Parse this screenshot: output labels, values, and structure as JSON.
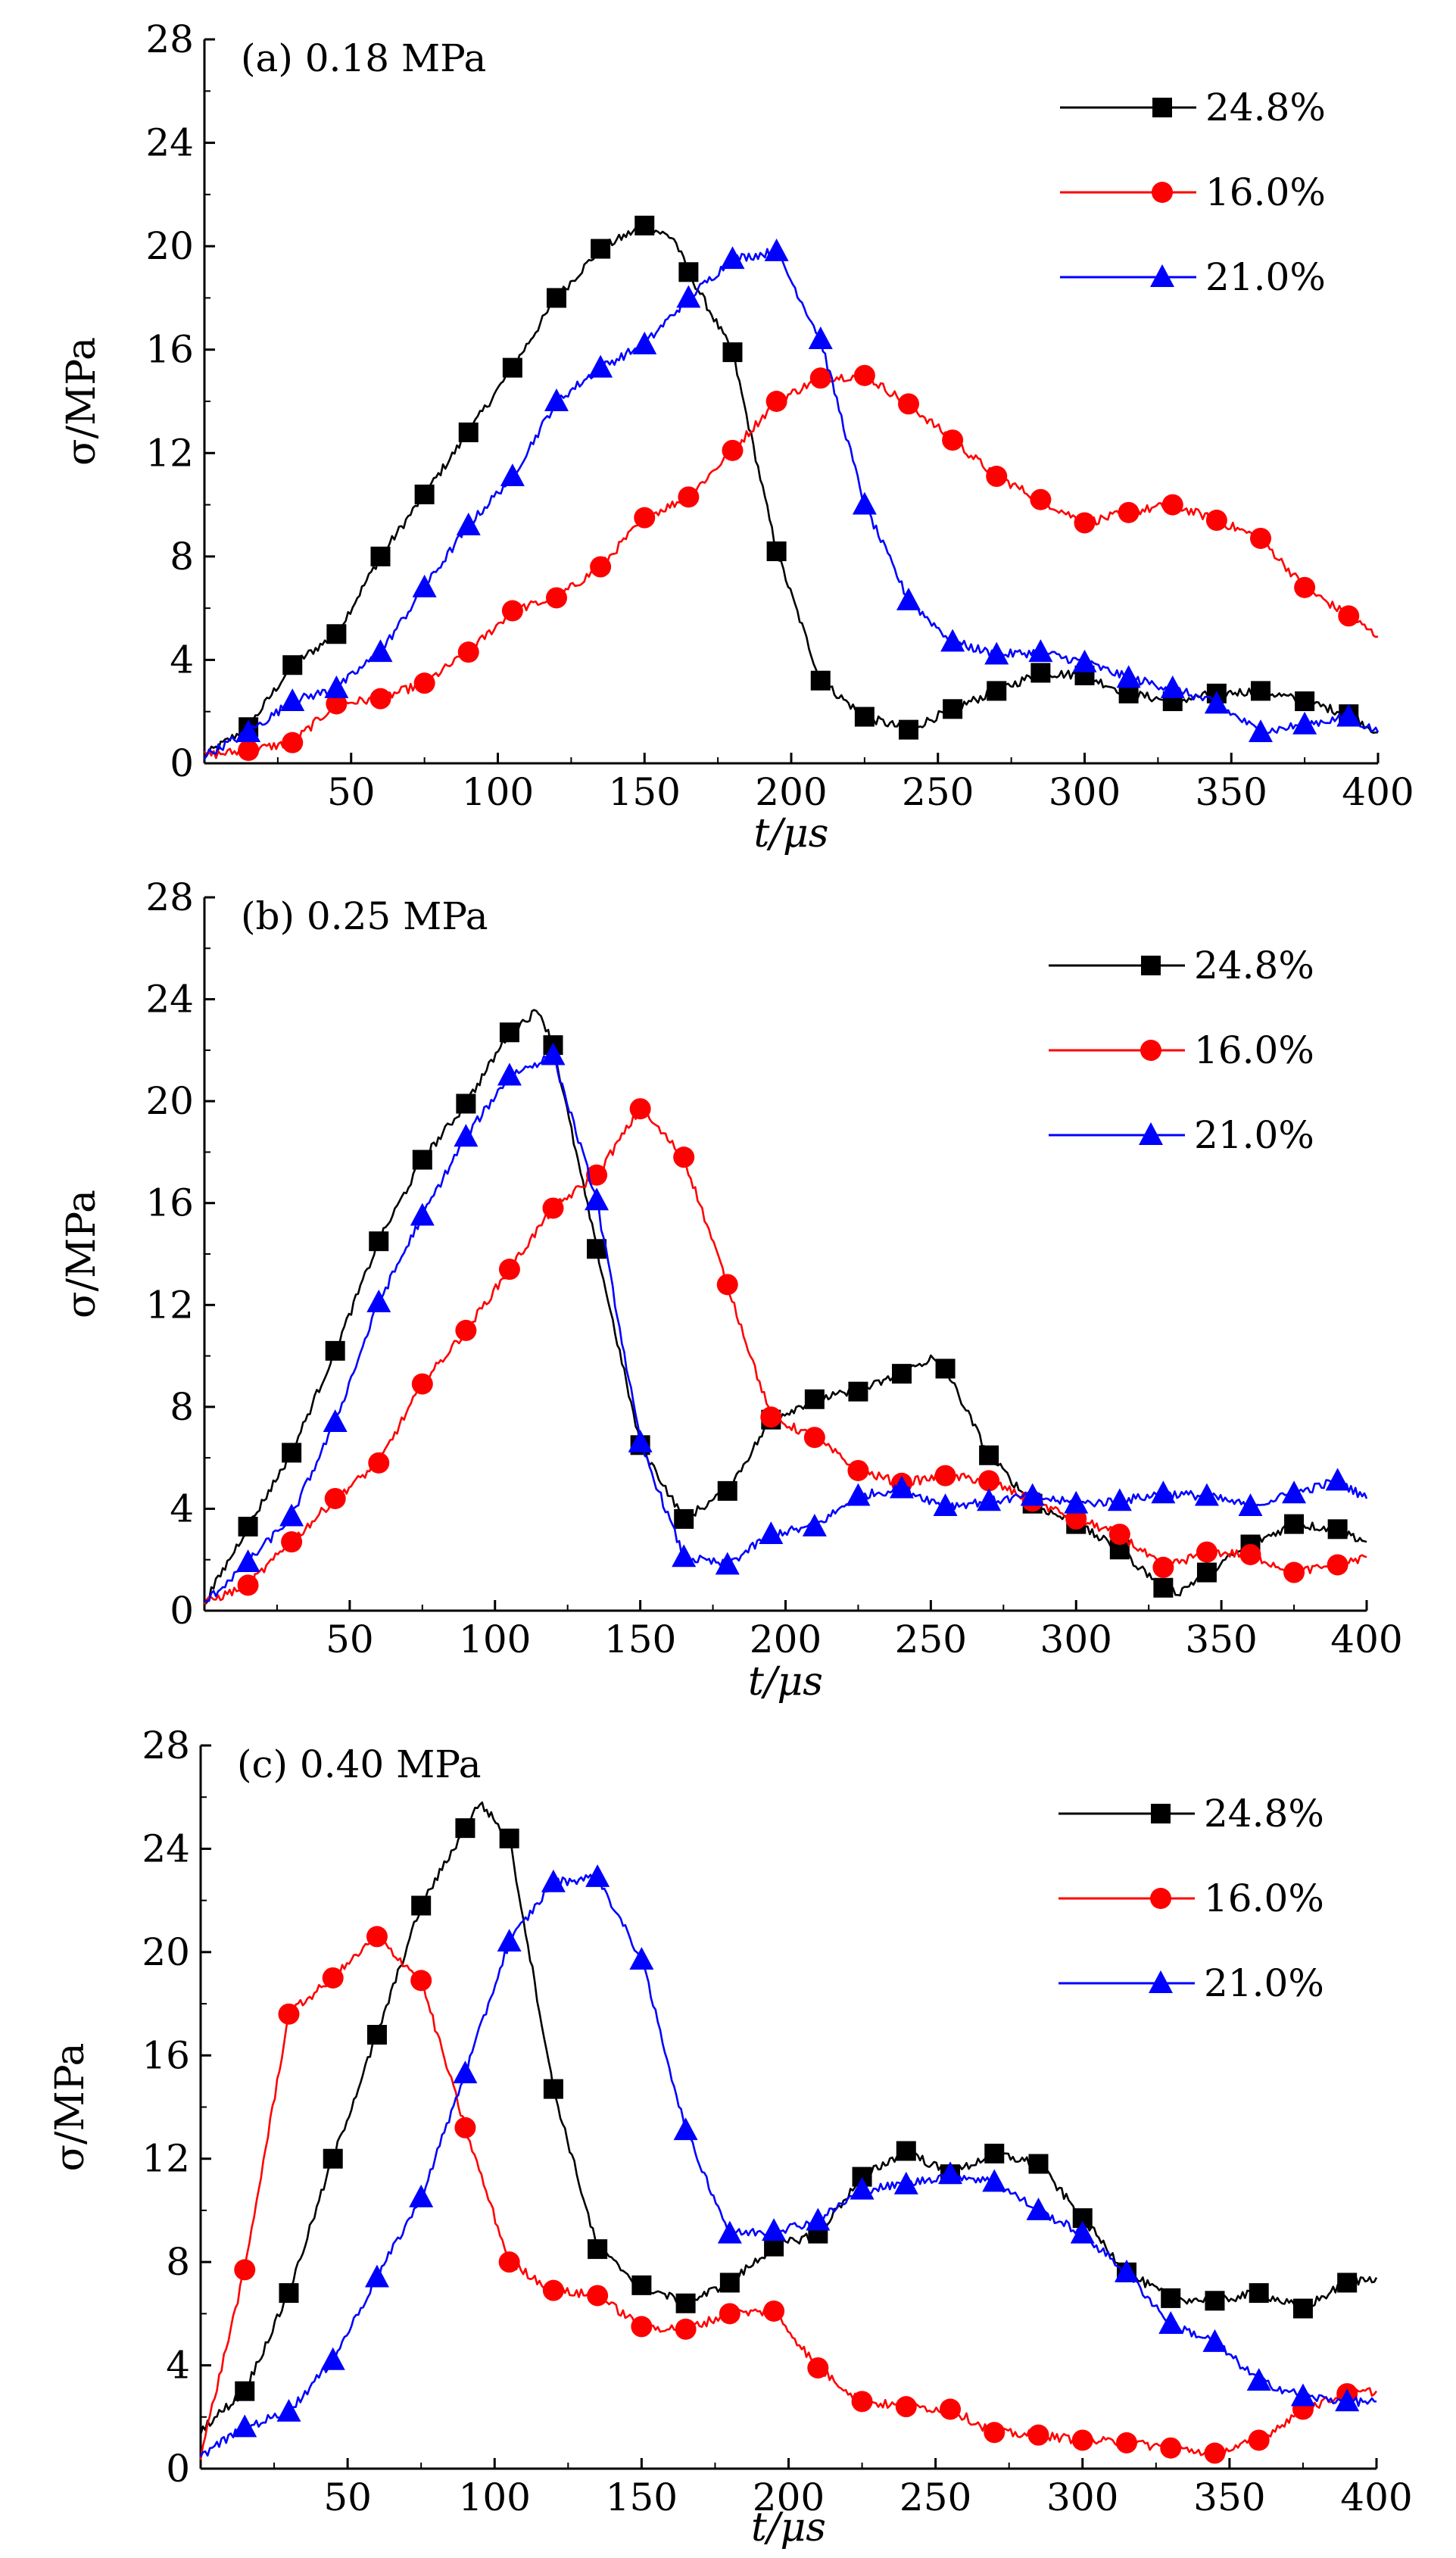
{
  "chart_data": [
    {
      "type": "line",
      "title": "(a) 0.18 MPa",
      "xlabel": "t/μs",
      "ylabel": "σ/MPa",
      "xlim": [
        0,
        400
      ],
      "ylim": [
        0,
        28
      ],
      "xticks": [
        50,
        100,
        150,
        200,
        250,
        300,
        350,
        400
      ],
      "yticks": [
        0,
        4,
        8,
        12,
        16,
        20,
        24,
        28
      ],
      "legend_position": "top-right",
      "grid": false,
      "series": [
        {
          "name": "24.8%",
          "color": "#000000",
          "marker": "square",
          "x": [
            0,
            15,
            30,
            45,
            60,
            75,
            90,
            105,
            120,
            135,
            150,
            160,
            165,
            180,
            195,
            210,
            225,
            240,
            255,
            270,
            285,
            300,
            315,
            330,
            345,
            360,
            375,
            390,
            400
          ],
          "y": [
            0.3,
            1.4,
            3.8,
            5,
            8,
            10.4,
            12.8,
            15.3,
            18,
            19.9,
            20.8,
            20.3,
            19,
            15.9,
            8.2,
            3.2,
            1.8,
            1.3,
            2.1,
            2.8,
            3.5,
            3.4,
            2.7,
            2.4,
            2.7,
            2.8,
            2.4,
            1.9,
            1.2
          ]
        },
        {
          "name": "16.0%",
          "color": "#ff0000",
          "marker": "circle",
          "x": [
            0,
            15,
            30,
            45,
            60,
            75,
            90,
            105,
            120,
            135,
            150,
            165,
            180,
            195,
            210,
            225,
            240,
            255,
            270,
            285,
            300,
            315,
            330,
            345,
            360,
            375,
            390,
            400
          ],
          "y": [
            0.3,
            0.5,
            0.8,
            2.3,
            2.5,
            3.1,
            4.3,
            5.9,
            6.4,
            7.6,
            9.5,
            10.3,
            12.1,
            14,
            14.9,
            15,
            13.9,
            12.5,
            11.1,
            10.2,
            9.3,
            9.7,
            10,
            9.4,
            8.7,
            6.8,
            5.7,
            4.9
          ]
        },
        {
          "name": "21.0%",
          "color": "#0000ff",
          "marker": "triangle",
          "x": [
            0,
            15,
            30,
            45,
            60,
            75,
            90,
            105,
            120,
            135,
            150,
            165,
            180,
            195,
            210,
            225,
            240,
            255,
            270,
            285,
            300,
            315,
            330,
            345,
            360,
            375,
            390,
            400
          ],
          "y": [
            0.3,
            1.2,
            2.4,
            2.9,
            4.3,
            6.8,
            9.2,
            11.1,
            14,
            15.3,
            16.2,
            18,
            19.5,
            19.8,
            16.4,
            10,
            6.3,
            4.7,
            4.2,
            4.3,
            3.9,
            3.3,
            2.9,
            2.3,
            1.2,
            1.5,
            1.8,
            1.2
          ]
        }
      ]
    },
    {
      "type": "line",
      "title": "(b) 0.25 MPa",
      "xlabel": "t/μs",
      "ylabel": "σ/MPa",
      "xlim": [
        0,
        400
      ],
      "ylim": [
        0,
        28
      ],
      "xticks": [
        50,
        100,
        150,
        200,
        250,
        300,
        350,
        400
      ],
      "yticks": [
        0,
        4,
        8,
        12,
        16,
        20,
        24,
        28
      ],
      "legend_position": "top-right",
      "grid": false,
      "series": [
        {
          "name": "24.8%",
          "color": "#000000",
          "marker": "square",
          "x": [
            0,
            15,
            30,
            45,
            60,
            75,
            90,
            105,
            115,
            120,
            135,
            150,
            165,
            180,
            195,
            210,
            225,
            240,
            250,
            255,
            270,
            285,
            300,
            315,
            330,
            335,
            345,
            360,
            375,
            390,
            400
          ],
          "y": [
            0.3,
            3.3,
            6.2,
            10.2,
            14.5,
            17.7,
            19.9,
            22.7,
            23.6,
            22.2,
            14.2,
            6.5,
            3.6,
            4.7,
            7.5,
            8.3,
            8.6,
            9.3,
            9.9,
            9.5,
            6.1,
            4.2,
            3.4,
            2.4,
            0.9,
            0.7,
            1.5,
            2.6,
            3.4,
            3.2,
            2.7
          ]
        },
        {
          "name": "16.0%",
          "color": "#ff0000",
          "marker": "circle",
          "x": [
            0,
            15,
            30,
            45,
            60,
            75,
            90,
            105,
            120,
            135,
            150,
            165,
            180,
            195,
            210,
            225,
            240,
            255,
            270,
            285,
            300,
            315,
            330,
            345,
            360,
            375,
            390,
            400
          ],
          "y": [
            0.3,
            1,
            2.7,
            4.4,
            5.8,
            8.9,
            11,
            13.4,
            15.8,
            17.1,
            19.7,
            17.8,
            12.8,
            7.6,
            6.8,
            5.5,
            5,
            5.3,
            5.1,
            4.3,
            3.6,
            3,
            1.7,
            2.3,
            2.2,
            1.5,
            1.8,
            2.1
          ]
        },
        {
          "name": "21.0%",
          "color": "#0000ff",
          "marker": "triangle",
          "x": [
            0,
            15,
            30,
            45,
            60,
            75,
            90,
            105,
            120,
            135,
            150,
            165,
            180,
            195,
            210,
            225,
            240,
            255,
            270,
            285,
            300,
            315,
            330,
            345,
            360,
            375,
            390,
            400
          ],
          "y": [
            0.3,
            1.9,
            3.7,
            7.4,
            12.1,
            15.5,
            18.6,
            21,
            21.8,
            16.1,
            6.6,
            2.1,
            1.8,
            3,
            3.3,
            4.5,
            4.8,
            4.1,
            4.3,
            4.5,
            4.2,
            4.3,
            4.6,
            4.5,
            4.1,
            4.6,
            5.1,
            4.4
          ]
        }
      ]
    },
    {
      "type": "line",
      "title": "(c) 0.40 MPa",
      "xlabel": "t/μs",
      "ylabel": "σ/MPa",
      "xlim": [
        0,
        400
      ],
      "ylim": [
        0,
        28
      ],
      "xticks": [
        50,
        100,
        150,
        200,
        250,
        300,
        350,
        400
      ],
      "yticks": [
        0,
        4,
        8,
        12,
        16,
        20,
        24,
        28
      ],
      "legend_position": "top-right",
      "grid": false,
      "series": [
        {
          "name": "24.8%",
          "color": "#000000",
          "marker": "square",
          "x": [
            0,
            15,
            30,
            45,
            60,
            75,
            90,
            95,
            105,
            120,
            135,
            150,
            165,
            180,
            195,
            210,
            225,
            240,
            255,
            270,
            285,
            300,
            315,
            330,
            345,
            360,
            375,
            390,
            400
          ],
          "y": [
            1.5,
            3,
            6.8,
            12,
            16.8,
            21.8,
            24.8,
            25.8,
            24.4,
            14.7,
            8.5,
            7.1,
            6.4,
            7.2,
            8.6,
            9.1,
            11.3,
            12.3,
            11.4,
            12.2,
            11.8,
            9.7,
            7.6,
            6.6,
            6.5,
            6.8,
            6.2,
            7.2,
            7.4
          ]
        },
        {
          "name": "16.0%",
          "color": "#ff0000",
          "marker": "circle",
          "x": [
            0,
            15,
            30,
            45,
            60,
            75,
            90,
            105,
            120,
            135,
            150,
            165,
            180,
            195,
            210,
            225,
            240,
            255,
            270,
            285,
            300,
            315,
            330,
            345,
            360,
            375,
            390,
            400
          ],
          "y": [
            0.5,
            7.7,
            17.6,
            19,
            20.6,
            18.9,
            13.2,
            8,
            6.9,
            6.7,
            5.5,
            5.4,
            6,
            6.1,
            3.9,
            2.6,
            2.4,
            2.3,
            1.4,
            1.3,
            1.1,
            1,
            0.8,
            0.6,
            1.1,
            2.3,
            2.9,
            3
          ]
        },
        {
          "name": "21.0%",
          "color": "#0000ff",
          "marker": "triangle",
          "x": [
            0,
            15,
            30,
            45,
            60,
            75,
            90,
            105,
            120,
            135,
            150,
            165,
            180,
            195,
            210,
            225,
            240,
            255,
            270,
            285,
            300,
            315,
            330,
            345,
            360,
            375,
            390,
            400
          ],
          "y": [
            0.5,
            1.6,
            2.2,
            4.2,
            7.4,
            10.5,
            15.3,
            20.4,
            22.7,
            22.9,
            19.7,
            13.1,
            9.1,
            9.2,
            9.6,
            10.8,
            11,
            11.4,
            11.1,
            10,
            9.1,
            7.6,
            5.6,
            4.9,
            3.4,
            2.8,
            2.6,
            2.6
          ]
        }
      ]
    }
  ]
}
